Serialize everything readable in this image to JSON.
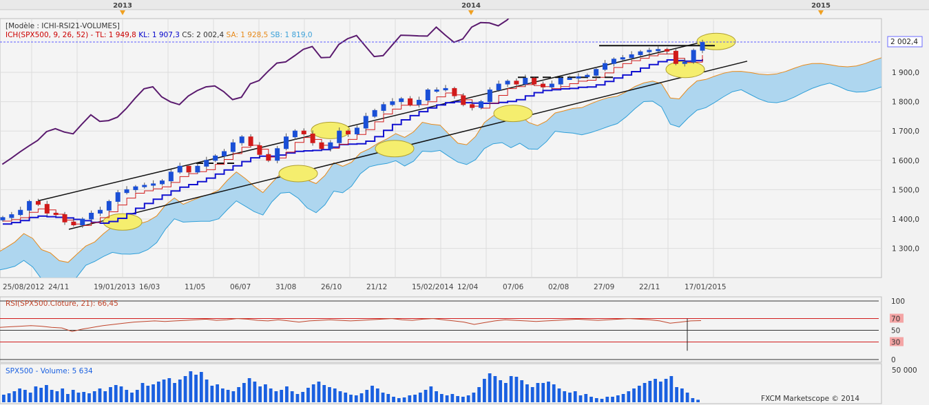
{
  "timeline": {
    "years": [
      "2013",
      "2014",
      "2015"
    ]
  },
  "main_panel": {
    "model_label": "[Modèle : ICHI-RSI21-VOLUMES]",
    "legend": [
      {
        "text": "ICH(SPX500, 9, 26, 52) -",
        "color": "#cc0000"
      },
      {
        "text": "TL: 1 949,8",
        "color": "#cc0000"
      },
      {
        "text": "KL: 1 907,3",
        "color": "#0000cc"
      },
      {
        "text": "CS: 2 002,4",
        "color": "#333333"
      },
      {
        "text": "SA: 1 928,5",
        "color": "#e88a1a"
      },
      {
        "text": "SB: 1 819,0",
        "color": "#3aa0d8"
      }
    ],
    "last_price_label": "2 002,4",
    "y_ticks": [
      "1 900,0",
      "1 800,0",
      "1 700,0",
      "1 600,0",
      "1 500,0",
      "1 400,0",
      "1 300,0"
    ],
    "x_ticks": [
      "25/08/2012",
      "24/11",
      "19/01/2013",
      "16/03",
      "11/05",
      "06/07",
      "31/08",
      "26/10",
      "21/12",
      "15/02/2014",
      "12/04",
      "07/06",
      "02/08",
      "27/09",
      "22/11",
      "17/01/2015"
    ]
  },
  "rsi_panel": {
    "label": "RSI(SPX500.Cloture, 21): 66,45",
    "levels": [
      "100",
      "70",
      "50",
      "30",
      "0"
    ]
  },
  "volume_panel": {
    "label": "SPX500 - Volume: 5 634",
    "level": "50 000"
  },
  "footer": {
    "credit": "FXCM Marketscope © 2014"
  },
  "colors": {
    "background": "#f2f2f2",
    "grid": "#dcdcdc",
    "up_candle": "#1a4fd6",
    "down_candle": "#d11a1a",
    "tenkan": "#d11a1a",
    "kijun": "#1010d0",
    "chikou": "#5a1a6e",
    "senkou_a": "#e88a1a",
    "cloud_fill": "#aed6ef",
    "channel": "#111111",
    "highlight": "#f5ee6e",
    "rsi_line": "#c0442a",
    "volume_bar": "#1a60e0",
    "price_label_bg": "#ffffff"
  },
  "chart_data": [
    {
      "type": "candlestick",
      "series": [
        {
          "name": "SPX500",
          "values": [
            1405,
            1415,
            1430,
            1460,
            1450,
            1420,
            1415,
            1390,
            1380,
            1400,
            1420,
            1430,
            1460,
            1490,
            1500,
            1510,
            1515,
            1520,
            1530,
            1560,
            1580,
            1560,
            1580,
            1600,
            1615,
            1630,
            1660,
            1680,
            1650,
            1620,
            1600,
            1640,
            1680,
            1700,
            1690,
            1660,
            1640,
            1660,
            1700,
            1690,
            1710,
            1750,
            1770,
            1790,
            1800,
            1810,
            1790,
            1805,
            1840,
            1840,
            1845,
            1820,
            1790,
            1780,
            1800,
            1840,
            1860,
            1870,
            1860,
            1880,
            1860,
            1850,
            1860,
            1880,
            1880,
            1885,
            1890,
            1910,
            1930,
            1945,
            1950,
            1960,
            1970,
            1975,
            1978,
            1972,
            1930,
            1935,
            1975,
            2002
          ]
        }
      ]
    },
    {
      "type": "line",
      "series": [
        {
          "name": "RSI(SPX500.Cloture, 21)",
          "values": [
            55,
            56,
            57,
            58,
            57,
            55,
            54,
            48,
            52,
            55,
            58,
            60,
            62,
            64,
            65,
            66,
            65,
            66,
            67,
            68,
            69,
            67,
            68,
            70,
            69,
            67,
            66,
            68,
            66,
            64,
            66,
            67,
            68,
            67,
            66,
            67,
            68,
            69,
            70,
            68,
            67,
            69,
            70,
            68,
            66,
            64,
            60,
            63,
            66,
            68,
            67,
            66,
            65,
            66,
            67,
            68,
            69,
            68,
            67,
            68,
            69,
            70,
            69,
            68,
            66,
            62,
            64,
            66,
            66.45
          ]
        }
      ],
      "levels": [
        100,
        70,
        50,
        30,
        0
      ]
    },
    {
      "type": "bar",
      "series": [
        {
          "name": "SPX500 - Volume",
          "values": [
            13000,
            15000,
            18000,
            22000,
            20000,
            16000,
            25000,
            23000,
            27000,
            20000,
            18000,
            22000,
            14000,
            20000,
            16000,
            17000,
            15000,
            18000,
            22000,
            18000,
            24000,
            27000,
            25000,
            20000,
            16000,
            20000,
            30000,
            26000,
            28000,
            32000,
            35000,
            37000,
            30000,
            35000,
            40000,
            47000,
            42000,
            46000,
            35000,
            26000,
            28000,
            22000,
            20000,
            18000,
            24000,
            30000,
            37000,
            32000,
            25000,
            28000,
            22000,
            18000,
            20000,
            25000,
            18000,
            14000,
            17000,
            23000,
            28000,
            32000,
            27000,
            24000,
            22000,
            18000,
            16000,
            13000,
            12000,
            15000,
            20000,
            26000,
            22000,
            16000,
            14000,
            10000,
            8000,
            9000,
            12000,
            13000,
            16000,
            20000,
            25000,
            18000,
            14000,
            12000,
            14000,
            11000,
            10000,
            12000,
            16000,
            24000,
            36000,
            44000,
            40000,
            34000,
            30000,
            40000,
            39000,
            34000,
            28000,
            24000,
            30000,
            30000,
            32000,
            28000,
            22000,
            18000,
            16000,
            18000,
            12000,
            14000,
            10000,
            8000,
            7000,
            10000,
            10000,
            12000,
            14000,
            18000,
            22000,
            26000,
            30000,
            33000,
            36000,
            32000,
            36000,
            40000,
            24000,
            22000,
            16000,
            8000,
            5634
          ]
        }
      ],
      "ylim": [
        0,
        50000
      ]
    }
  ]
}
